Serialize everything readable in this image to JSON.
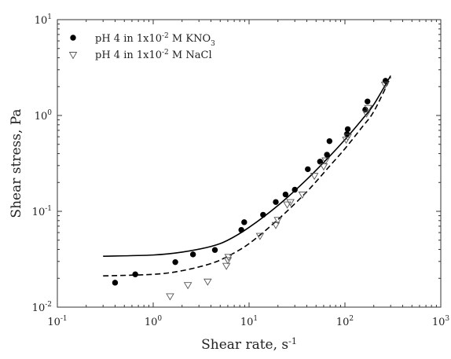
{
  "chart_data": {
    "type": "scatter",
    "xlabel": "Shear rate, s",
    "xlabel_sup": "-1",
    "ylabel": "Shear stress, Pa",
    "xscale": "log",
    "yscale": "log",
    "xlim": [
      0.1,
      1000
    ],
    "ylim": [
      0.01,
      10
    ],
    "x_ticks": [
      {
        "base": "10",
        "exp": "-1"
      },
      {
        "base": "10",
        "exp": "0"
      },
      {
        "base": "10",
        "exp": "1"
      },
      {
        "base": "10",
        "exp": "2"
      },
      {
        "base": "10",
        "exp": "3"
      }
    ],
    "y_ticks": [
      {
        "base": "10",
        "exp": "-2"
      },
      {
        "base": "10",
        "exp": "-1"
      },
      {
        "base": "10",
        "exp": "0"
      },
      {
        "base": "10",
        "exp": "1"
      }
    ],
    "legend_position": "top-left",
    "grid": false,
    "series": [
      {
        "name": "pH 4 in 1x10-2 M KNO3",
        "legend_parts": {
          "a": "pH 4 in 1x10",
          "sup": "-2",
          "b": " M KNO",
          "sub": "3"
        },
        "marker": "filled-circle",
        "color": "#000000",
        "points": [
          [
            0.4,
            0.018
          ],
          [
            0.65,
            0.022
          ],
          [
            1.7,
            0.0295
          ],
          [
            2.6,
            0.0355
          ],
          [
            4.4,
            0.0395
          ],
          [
            8.3,
            0.064
          ],
          [
            8.9,
            0.077
          ],
          [
            14,
            0.092
          ],
          [
            19,
            0.125
          ],
          [
            24,
            0.15
          ],
          [
            30,
            0.168
          ],
          [
            41,
            0.275
          ],
          [
            55,
            0.33
          ],
          [
            65,
            0.39
          ],
          [
            69,
            0.54
          ],
          [
            105,
            0.64
          ],
          [
            107,
            0.72
          ],
          [
            163,
            1.15
          ],
          [
            172,
            1.4
          ],
          [
            265,
            2.3
          ]
        ],
        "fit_line": {
          "style": "solid",
          "points": [
            [
              0.3,
              0.034
            ],
            [
              1,
              0.035
            ],
            [
              2,
              0.0375
            ],
            [
              4,
              0.043
            ],
            [
              6,
              0.05
            ],
            [
              10,
              0.068
            ],
            [
              20,
              0.115
            ],
            [
              40,
              0.215
            ],
            [
              70,
              0.38
            ],
            [
              100,
              0.56
            ],
            [
              150,
              0.9
            ],
            [
              200,
              1.3
            ],
            [
              300,
              2.6
            ]
          ]
        }
      },
      {
        "name": "pH 4 in 1x10-2 M NaCl",
        "legend_parts": {
          "a": "pH 4 in 1x10",
          "sup": "-2",
          "b": " M NaCl",
          "sub": ""
        },
        "marker": "open-triangle-down",
        "color": "#555555",
        "points": [
          [
            1.5,
            0.013
          ],
          [
            2.3,
            0.017
          ],
          [
            3.7,
            0.0185
          ],
          [
            5.8,
            0.027
          ],
          [
            6.0,
            0.031
          ],
          [
            6.1,
            0.0335
          ],
          [
            13,
            0.0555
          ],
          [
            19,
            0.072
          ],
          [
            20,
            0.0815
          ],
          [
            25,
            0.118
          ],
          [
            27,
            0.125
          ],
          [
            36,
            0.15
          ],
          [
            48,
            0.235
          ],
          [
            60,
            0.295
          ],
          [
            63,
            0.34
          ],
          [
            103,
            0.56
          ],
          [
            107,
            0.6
          ],
          [
            168,
            1.05
          ],
          [
            175,
            1.2
          ],
          [
            262,
            2.1
          ]
        ],
        "fit_line": {
          "style": "dashed",
          "points": [
            [
              0.3,
              0.0212
            ],
            [
              1,
              0.022
            ],
            [
              2,
              0.024
            ],
            [
              4,
              0.0285
            ],
            [
              6,
              0.034
            ],
            [
              10,
              0.046
            ],
            [
              20,
              0.082
            ],
            [
              40,
              0.16
            ],
            [
              70,
              0.3
            ],
            [
              100,
              0.45
            ],
            [
              150,
              0.75
            ],
            [
              200,
              1.1
            ],
            [
              300,
              2.5
            ]
          ]
        }
      }
    ]
  }
}
